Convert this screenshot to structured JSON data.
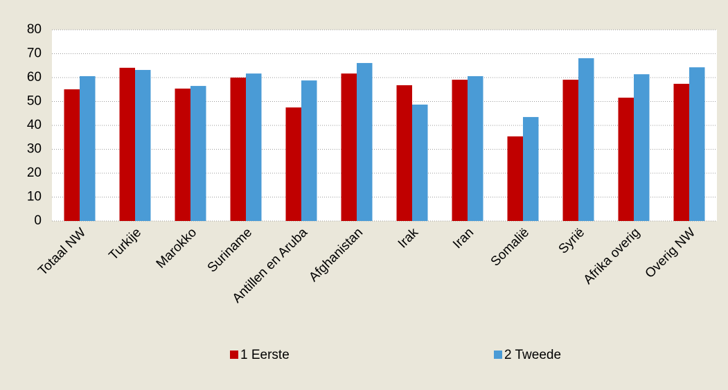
{
  "chart_data": {
    "type": "bar",
    "categories": [
      "Totaal NW",
      "Turkije",
      "Marokko",
      "Suriname",
      "Antillen en Aruba",
      "Afghanistan",
      "Irak",
      "Iran",
      "Somalië",
      "Syrië",
      "Afrika overig",
      "Overig NW"
    ],
    "series": [
      {
        "name": "1 Eerste",
        "color": "#c00000",
        "values": [
          55.1,
          64.1,
          55.4,
          60,
          47.5,
          61.7,
          56.8,
          59.1,
          35.4,
          59.1,
          51.6,
          57.4
        ]
      },
      {
        "name": "2 Tweede",
        "color": "#4a9bd6",
        "values": [
          60.6,
          63.2,
          56.5,
          61.7,
          58.8,
          66.1,
          48.7,
          60.6,
          43.5,
          68.1,
          61.4,
          64.3
        ]
      }
    ],
    "ylim": [
      0,
      80
    ],
    "yticks": [
      0,
      10,
      20,
      30,
      40,
      50,
      60,
      70,
      80
    ],
    "grid": true,
    "legend": "bottom"
  }
}
